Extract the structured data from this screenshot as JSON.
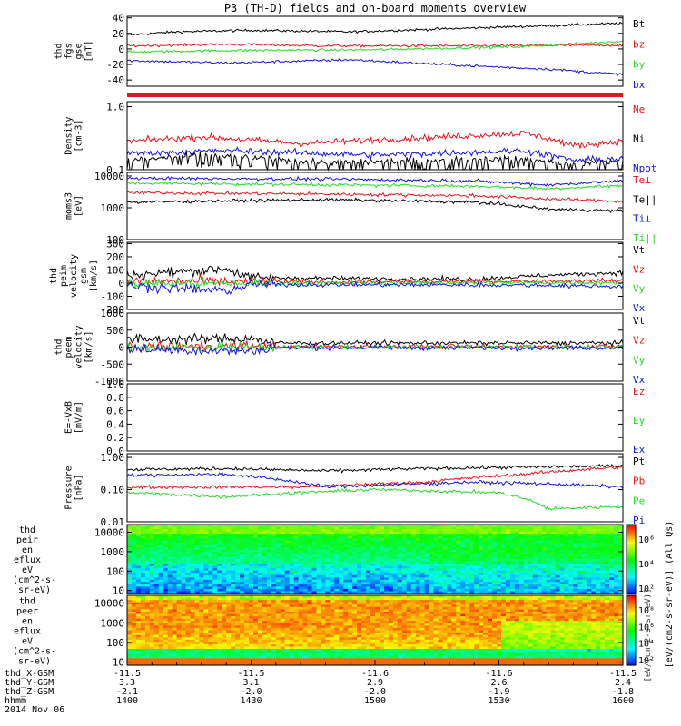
{
  "title": "P3 (TH-D) fields and on-board moments overview",
  "colors": {
    "black": "#000000",
    "red": "#e8141b",
    "green": "#22dd22",
    "blue": "#1515d8"
  },
  "chart_data": [
    {
      "type": "line",
      "ylabel": [
        "thd",
        "fgs",
        "gse",
        "[nT]"
      ],
      "ylim": [
        -48,
        42
      ],
      "yticks": [
        -40,
        -20,
        0,
        20,
        40
      ],
      "series": [
        {
          "name": "Bt",
          "color": "black",
          "trend": [
            [
              0,
              18
            ],
            [
              0.1,
              22
            ],
            [
              0.25,
              24
            ],
            [
              0.45,
              22
            ],
            [
              0.7,
              27
            ],
            [
              0.85,
              30
            ],
            [
              1,
              33
            ]
          ]
        },
        {
          "name": "bz",
          "color": "red",
          "trend": [
            [
              0,
              4
            ],
            [
              0.2,
              6
            ],
            [
              0.4,
              4
            ],
            [
              0.7,
              4
            ],
            [
              1,
              5
            ]
          ]
        },
        {
          "name": "by",
          "color": "green",
          "trend": [
            [
              0,
              -4
            ],
            [
              0.2,
              -2
            ],
            [
              0.5,
              -1
            ],
            [
              0.8,
              3
            ],
            [
              1,
              10
            ]
          ]
        },
        {
          "name": "bx",
          "color": "blue",
          "trend": [
            [
              0,
              -15
            ],
            [
              0.2,
              -18
            ],
            [
              0.45,
              -14
            ],
            [
              0.7,
              -22
            ],
            [
              0.85,
              -26
            ],
            [
              1,
              -33
            ]
          ]
        }
      ]
    },
    {
      "type": "line",
      "ylabel": [
        "Density",
        "[cm-3]"
      ],
      "scale": "log",
      "ylim": [
        0.1,
        1.2
      ],
      "ytick_labels": [
        "1.0",
        "0.1"
      ],
      "series": [
        {
          "name": "Ne",
          "color": "red",
          "trend": [
            [
              0,
              0.28
            ],
            [
              0.15,
              0.33
            ],
            [
              0.35,
              0.26
            ],
            [
              0.6,
              0.32
            ],
            [
              0.8,
              0.38
            ],
            [
              0.9,
              0.24
            ],
            [
              1,
              0.28
            ]
          ]
        },
        {
          "name": "Ni",
          "color": "black",
          "trend": [
            [
              0,
              0.14
            ],
            [
              0.15,
              0.17
            ],
            [
              0.4,
              0.13
            ],
            [
              0.8,
              0.15
            ],
            [
              0.9,
              0.12
            ],
            [
              1,
              0.14
            ]
          ]
        },
        {
          "name": "Npot",
          "color": "blue",
          "trend": [
            [
              0,
              0.18
            ],
            [
              0.2,
              0.2
            ],
            [
              0.5,
              0.17
            ],
            [
              0.8,
              0.2
            ],
            [
              0.9,
              0.14
            ],
            [
              1,
              0.15
            ]
          ]
        }
      ]
    },
    {
      "type": "line",
      "ylabel": [
        "moms3",
        "[eV]"
      ],
      "scale": "log",
      "ylim": [
        100,
        13000
      ],
      "ytick_labels": [
        "10000",
        "1000",
        "100"
      ],
      "series": [
        {
          "name": "Te⊥",
          "color": "red",
          "trend": [
            [
              0,
              3000
            ],
            [
              0.4,
              2700
            ],
            [
              0.7,
              2400
            ],
            [
              0.85,
              1900
            ],
            [
              1,
              1600
            ]
          ]
        },
        {
          "name": "Te||",
          "color": "black",
          "trend": [
            [
              0,
              1500
            ],
            [
              0.4,
              1800
            ],
            [
              0.7,
              1500
            ],
            [
              0.85,
              900
            ],
            [
              1,
              800
            ]
          ]
        },
        {
          "name": "Ti⊥",
          "color": "blue",
          "trend": [
            [
              0,
              8500
            ],
            [
              0.4,
              8000
            ],
            [
              0.7,
              7000
            ],
            [
              0.85,
              5200
            ],
            [
              1,
              7000
            ]
          ]
        },
        {
          "name": "Ti||",
          "color": "green",
          "trend": [
            [
              0,
              6000
            ],
            [
              0.4,
              5300
            ],
            [
              0.7,
              4800
            ],
            [
              0.85,
              4000
            ],
            [
              1,
              5000
            ]
          ]
        }
      ]
    },
    {
      "type": "line",
      "ylabel": [
        "thd",
        "peim",
        "velocity",
        "gsm",
        "[km/s]"
      ],
      "ylim": [
        -200,
        310
      ],
      "ytick_labels": [
        "300",
        "200",
        "100",
        "0",
        "-100",
        "-200"
      ],
      "ytick_values": [
        300,
        200,
        100,
        0,
        -100,
        -200
      ],
      "series": [
        {
          "name": "Vt",
          "color": "black",
          "trend": [
            [
              0,
              60
            ],
            [
              0.2,
              110
            ],
            [
              0.25,
              40
            ],
            [
              0.7,
              30
            ],
            [
              0.85,
              60
            ],
            [
              1,
              80
            ]
          ]
        },
        {
          "name": "Vz",
          "color": "red",
          "trend": [
            [
              0,
              15
            ],
            [
              0.5,
              8
            ],
            [
              1,
              20
            ]
          ]
        },
        {
          "name": "Vy",
          "color": "green",
          "trend": [
            [
              0,
              -5
            ],
            [
              0.5,
              0
            ],
            [
              1,
              5
            ]
          ]
        },
        {
          "name": "Vx",
          "color": "blue",
          "trend": [
            [
              0,
              -20
            ],
            [
              0.2,
              -60
            ],
            [
              0.25,
              -10
            ],
            [
              0.8,
              -15
            ],
            [
              1,
              -25
            ]
          ]
        }
      ]
    },
    {
      "type": "line",
      "ylabel": [
        "thd",
        "peem",
        "velocity",
        "[km/s]"
      ],
      "ylim": [
        -1000,
        1000
      ],
      "ytick_labels": [
        "1000",
        "500",
        "0",
        "-500",
        "-1000"
      ],
      "ytick_values": [
        1000,
        500,
        0,
        -500,
        -1000
      ],
      "series": [
        {
          "name": "Vt",
          "color": "black",
          "trend": [
            [
              0,
              220
            ],
            [
              0.25,
              250
            ],
            [
              0.3,
              120
            ],
            [
              1,
              120
            ]
          ]
        },
        {
          "name": "Vz",
          "color": "red",
          "trend": [
            [
              0,
              20
            ],
            [
              1,
              15
            ]
          ]
        },
        {
          "name": "Vy",
          "color": "green",
          "trend": [
            [
              0,
              -10
            ],
            [
              1,
              5
            ]
          ]
        },
        {
          "name": "Vx",
          "color": "blue",
          "trend": [
            [
              0,
              -60
            ],
            [
              0.25,
              -120
            ],
            [
              0.3,
              -20
            ],
            [
              1,
              -20
            ]
          ]
        }
      ]
    },
    {
      "type": "line",
      "ylabel": [
        "E=-VxB",
        "[mV/m]"
      ],
      "ylim": [
        0,
        1.0
      ],
      "ytick_labels": [
        "1.0",
        "0.8",
        "0.6",
        "0.4",
        "0.2",
        "0.0"
      ],
      "ytick_values": [
        1.0,
        0.8,
        0.6,
        0.4,
        0.2,
        0.0
      ],
      "series": [
        {
          "name": "Ez",
          "color": "red",
          "trend": []
        },
        {
          "name": "Ey",
          "color": "green",
          "trend": []
        },
        {
          "name": "Ex",
          "color": "blue",
          "trend": []
        }
      ]
    },
    {
      "type": "line",
      "ylabel": [
        "Pressure",
        "[nPa]"
      ],
      "scale": "log",
      "ylim": [
        0.01,
        1.3
      ],
      "ytick_labels": [
        "1.00",
        "0.10",
        "0.01"
      ],
      "series": [
        {
          "name": "Pt",
          "color": "black",
          "trend": [
            [
              0,
              0.42
            ],
            [
              0.2,
              0.45
            ],
            [
              0.4,
              0.38
            ],
            [
              0.6,
              0.45
            ],
            [
              0.8,
              0.5
            ],
            [
              1,
              0.55
            ]
          ]
        },
        {
          "name": "Pb",
          "color": "red",
          "trend": [
            [
              0,
              0.12
            ],
            [
              0.35,
              0.12
            ],
            [
              0.6,
              0.17
            ],
            [
              0.8,
              0.3
            ],
            [
              1,
              0.5
            ]
          ]
        },
        {
          "name": "Pe",
          "color": "green",
          "trend": [
            [
              0,
              0.08
            ],
            [
              0.2,
              0.06
            ],
            [
              0.5,
              0.1
            ],
            [
              0.75,
              0.08
            ],
            [
              0.85,
              0.025
            ],
            [
              1,
              0.03
            ]
          ]
        },
        {
          "name": "Pi",
          "color": "blue",
          "trend": [
            [
              0,
              0.28
            ],
            [
              0.2,
              0.3
            ],
            [
              0.4,
              0.12
            ],
            [
              0.7,
              0.17
            ],
            [
              0.85,
              0.15
            ],
            [
              1,
              0.12
            ]
          ]
        }
      ]
    },
    {
      "type": "heatmap",
      "ylabel": [
        "thd",
        "peir",
        "en",
        "eflux",
        "eV",
        "(cm^2-s-",
        "sr-eV)"
      ],
      "scale": "log",
      "ylim": [
        7,
        25000
      ],
      "ytick_labels": [
        "10000",
        "1000",
        "100",
        "10"
      ],
      "colorbar_ticks": [
        "10⁶",
        "10⁴",
        "10²"
      ]
    },
    {
      "type": "heatmap",
      "ylabel": [
        "thd",
        "peer",
        "en",
        "eflux",
        "eV",
        "(cm^2-s-",
        "sr-eV)"
      ],
      "scale": "log",
      "ylim": [
        7,
        25000
      ],
      "ytick_labels": [
        "10000",
        "1000",
        "100",
        "10"
      ],
      "colorbar_ticks": [
        "10⁸",
        "10⁶",
        "10⁴",
        "10²"
      ]
    }
  ],
  "colorbar_label": "[eV/(cm2-s-sr-eV)] (All Qs)",
  "colorbar_overlay_text": "[eV/(cm^2-s-sr-eV)]",
  "x_axis": {
    "rows": [
      {
        "label": "thd_X-GSM",
        "values": [
          "-11.5",
          "-11.5",
          "-11.6",
          "-11.6",
          "-11.5"
        ]
      },
      {
        "label": "thd_Y-GSM",
        "values": [
          "3.3",
          "3.1",
          "2.9",
          "2.6",
          "2.4"
        ]
      },
      {
        "label": "thd_Z-GSM",
        "values": [
          "-2.1",
          "-2.0",
          "-2.0",
          "-1.9",
          "-1.8"
        ]
      },
      {
        "label": "hhmm",
        "values": [
          "1400",
          "1430",
          "1500",
          "1530",
          "1600"
        ]
      }
    ],
    "date": "2014 Nov 06"
  }
}
